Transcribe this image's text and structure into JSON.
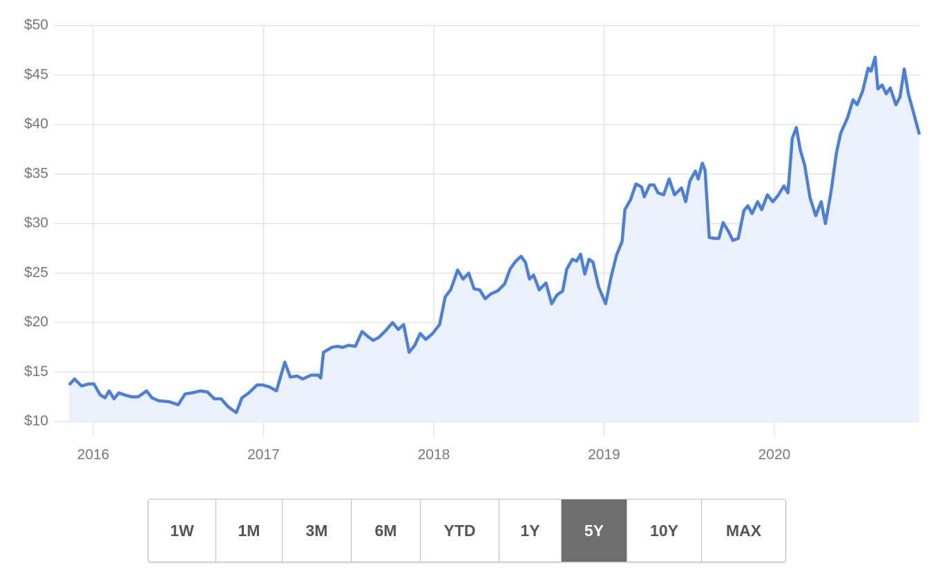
{
  "chart_data": {
    "type": "area",
    "x": [
      2015.858,
      2015.89,
      2015.931,
      2015.972,
      2016.004,
      2016.041,
      2016.069,
      2016.093,
      2016.122,
      2016.15,
      2016.183,
      2016.223,
      2016.264,
      2016.313,
      2016.345,
      2016.386,
      2016.447,
      2016.499,
      2016.54,
      2016.581,
      2016.629,
      2016.67,
      2016.711,
      2016.751,
      2016.792,
      2016.84,
      2016.873,
      2016.914,
      2016.962,
      2016.995,
      2017.035,
      2017.076,
      2017.125,
      2017.157,
      2017.198,
      2017.23,
      2017.279,
      2017.32,
      2017.336,
      2017.352,
      2017.401,
      2017.433,
      2017.466,
      2017.498,
      2017.539,
      2017.579,
      2017.612,
      2017.644,
      2017.677,
      2017.718,
      2017.758,
      2017.791,
      2017.823,
      2017.855,
      2017.888,
      2017.92,
      2017.953,
      2017.993,
      2018.034,
      2018.067,
      2018.099,
      2018.14,
      2018.172,
      2018.205,
      2018.237,
      2018.27,
      2018.302,
      2018.335,
      2018.375,
      2018.416,
      2018.448,
      2018.481,
      2018.513,
      2018.538,
      2018.562,
      2018.586,
      2018.619,
      2018.659,
      2018.692,
      2018.724,
      2018.757,
      2018.781,
      2018.814,
      2018.838,
      2018.862,
      2018.887,
      2018.911,
      2018.935,
      2018.968,
      2019.009,
      2019.041,
      2019.073,
      2019.106,
      2019.122,
      2019.155,
      2019.187,
      2019.22,
      2019.236,
      2019.268,
      2019.293,
      2019.317,
      2019.35,
      2019.382,
      2019.414,
      2019.455,
      2019.479,
      2019.504,
      2019.536,
      2019.553,
      2019.577,
      2019.593,
      2019.618,
      2019.65,
      2019.674,
      2019.699,
      2019.731,
      2019.756,
      2019.788,
      2019.821,
      2019.845,
      2019.869,
      2019.902,
      2019.926,
      2019.959,
      2019.991,
      2020.024,
      2020.056,
      2020.08,
      2020.105,
      2020.129,
      2020.153,
      2020.178,
      2020.21,
      2020.243,
      2020.275,
      2020.3,
      2020.332,
      2020.365,
      2020.389,
      2020.43,
      2020.462,
      2020.486,
      2020.519,
      2020.551,
      2020.568,
      2020.592,
      2020.608,
      2020.633,
      2020.657,
      2020.681,
      2020.714,
      2020.738,
      2020.763,
      2020.787,
      2020.819,
      2020.852
    ],
    "values": [
      13.7,
      14.3,
      13.6,
      13.8,
      13.8,
      12.7,
      12.4,
      13.1,
      12.3,
      12.9,
      12.7,
      12.5,
      12.5,
      13.1,
      12.4,
      12.1,
      12.0,
      11.7,
      12.8,
      12.9,
      13.1,
      13.0,
      12.3,
      12.3,
      11.5,
      10.9,
      12.4,
      12.9,
      13.7,
      13.7,
      13.5,
      13.1,
      16.0,
      14.5,
      14.6,
      14.3,
      14.7,
      14.7,
      14.4,
      17.0,
      17.5,
      17.6,
      17.5,
      17.7,
      17.6,
      19.1,
      18.6,
      18.2,
      18.5,
      19.2,
      20.0,
      19.3,
      19.8,
      17.0,
      17.7,
      18.9,
      18.3,
      18.9,
      19.8,
      22.6,
      23.3,
      25.3,
      24.4,
      25.0,
      23.4,
      23.3,
      22.4,
      22.9,
      23.2,
      23.9,
      25.4,
      26.2,
      26.7,
      26.1,
      24.4,
      24.8,
      23.3,
      24.0,
      21.9,
      22.8,
      23.2,
      25.4,
      26.4,
      26.2,
      26.9,
      24.9,
      26.4,
      26.1,
      23.6,
      21.9,
      24.6,
      26.8,
      28.2,
      31.4,
      32.4,
      34.0,
      33.7,
      32.7,
      33.9,
      33.9,
      33.1,
      32.9,
      34.5,
      32.9,
      33.6,
      32.2,
      34.3,
      35.3,
      34.5,
      36.1,
      35.4,
      28.6,
      28.5,
      28.5,
      30.1,
      29.2,
      28.3,
      28.5,
      31.3,
      31.8,
      31.0,
      32.2,
      31.4,
      32.9,
      32.2,
      32.9,
      33.8,
      33.1,
      38.6,
      39.7,
      37.4,
      35.9,
      32.6,
      30.8,
      32.2,
      30.0,
      33.1,
      37.2,
      39.1,
      40.7,
      42.5,
      42.0,
      43.4,
      45.7,
      45.4,
      46.8,
      43.6,
      44.0,
      43.1,
      43.7,
      42.0,
      42.8,
      45.6,
      43.1,
      41.1,
      39.0
    ],
    "color": "#4a7fdc",
    "fill": "#eaf0fc",
    "xlim": [
      2015.858,
      2020.852
    ],
    "xticks": [
      2016,
      2017,
      2018,
      2019,
      2020
    ],
    "ylim": [
      10,
      50
    ],
    "yticks": [
      {
        "value": 10,
        "label": "$10"
      },
      {
        "value": 15,
        "label": "$15"
      },
      {
        "value": 20,
        "label": "$20"
      },
      {
        "value": 25,
        "label": "$25"
      },
      {
        "value": 30,
        "label": "$30"
      },
      {
        "value": 35,
        "label": "$35"
      },
      {
        "value": 40,
        "label": "$40"
      },
      {
        "value": 45,
        "label": "$45"
      },
      {
        "value": 50,
        "label": "$50"
      }
    ],
    "grid": true
  },
  "buttons": {
    "labels": [
      "1W",
      "1M",
      "3M",
      "6M",
      "YTD",
      "1Y",
      "5Y",
      "10Y",
      "MAX"
    ],
    "selected": 6
  }
}
